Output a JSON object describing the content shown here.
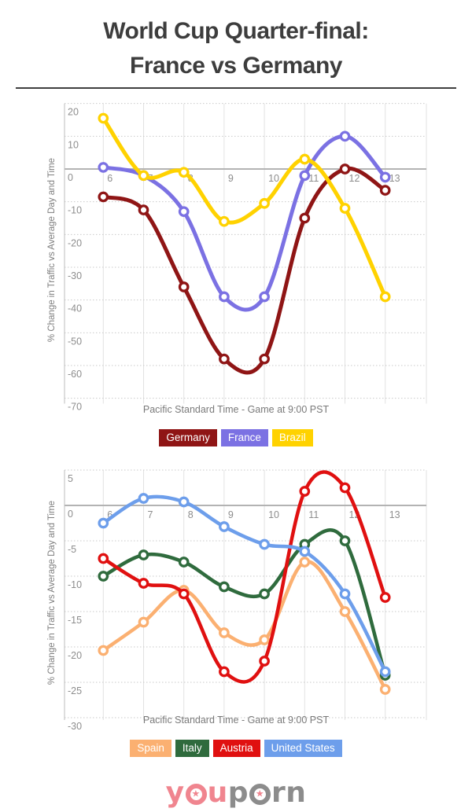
{
  "header": {
    "title_line1": "World Cup Quarter-final:",
    "title_line2": "France vs Germany"
  },
  "chart_data": [
    {
      "type": "line",
      "x": [
        6,
        7,
        8,
        9,
        10,
        11,
        12,
        13
      ],
      "xlabel": "Pacific Standard Time - Game at 9:00 PST",
      "ylabel": "% Change in Traffic vs Average Day and Time",
      "yticks": [
        20,
        10,
        0,
        -10,
        -20,
        -30,
        -40,
        -50,
        -60,
        -70
      ],
      "ylim": [
        -71,
        20
      ],
      "grid": true,
      "legend_position": "bottom",
      "curve": "smooth",
      "series": [
        {
          "name": "Germany",
          "color": "#8F1515",
          "values": [
            -8.5,
            -12.5,
            -36,
            -58,
            -58,
            -15,
            0,
            -6.5
          ]
        },
        {
          "name": "France",
          "color": "#7B71E3",
          "values": [
            0.5,
            -2,
            -13,
            -39,
            -39,
            -2,
            10,
            -2.5
          ]
        },
        {
          "name": "Brazil",
          "color": "#FFD200",
          "values": [
            15.5,
            -2,
            -1,
            -16,
            -10.5,
            3,
            -12,
            -39
          ]
        }
      ]
    },
    {
      "type": "line",
      "x": [
        6,
        7,
        8,
        9,
        10,
        11,
        12,
        13
      ],
      "xlabel": "Pacific Standard Time - Game at 9:00 PST",
      "ylabel": "% Change in Traffic vs Average Day and Time",
      "yticks": [
        5,
        0,
        -5,
        -10,
        -15,
        -20,
        -25,
        -30
      ],
      "ylim": [
        -30.5,
        5
      ],
      "grid": true,
      "legend_position": "bottom",
      "curve": "smooth",
      "series": [
        {
          "name": "Spain",
          "color": "#FBB071",
          "values": [
            -20.5,
            -16.5,
            -12,
            -18,
            -19,
            -8,
            -15,
            -26
          ]
        },
        {
          "name": "Italy",
          "color": "#2F6B3D",
          "values": [
            -10,
            -7,
            -8,
            -11.5,
            -12.5,
            -5.5,
            -5,
            -24
          ]
        },
        {
          "name": "Austria",
          "color": "#E01010",
          "values": [
            -7.5,
            -11,
            -12.5,
            -23.5,
            -22,
            2,
            2.5,
            -13
          ]
        },
        {
          "name": "United States",
          "color": "#6D9EEB",
          "values": [
            -2.5,
            1,
            0.5,
            -3,
            -5.5,
            -6.5,
            -12.5,
            -23.5
          ]
        }
      ]
    }
  ],
  "footer_logo": {
    "text": "youporn",
    "pink_letter_count": 3,
    "pink": "#F0858F",
    "gray": "#8C8C8C",
    "star": "★"
  },
  "style_colors": {
    "title": "#3d3d3d",
    "tick_label": "#8d8d8d",
    "gridline": "#e2e2e2",
    "dotted_gridline": "#c9c9c9",
    "zero_line": "#b3b3b3",
    "axis_line": "#bdbdbd"
  }
}
